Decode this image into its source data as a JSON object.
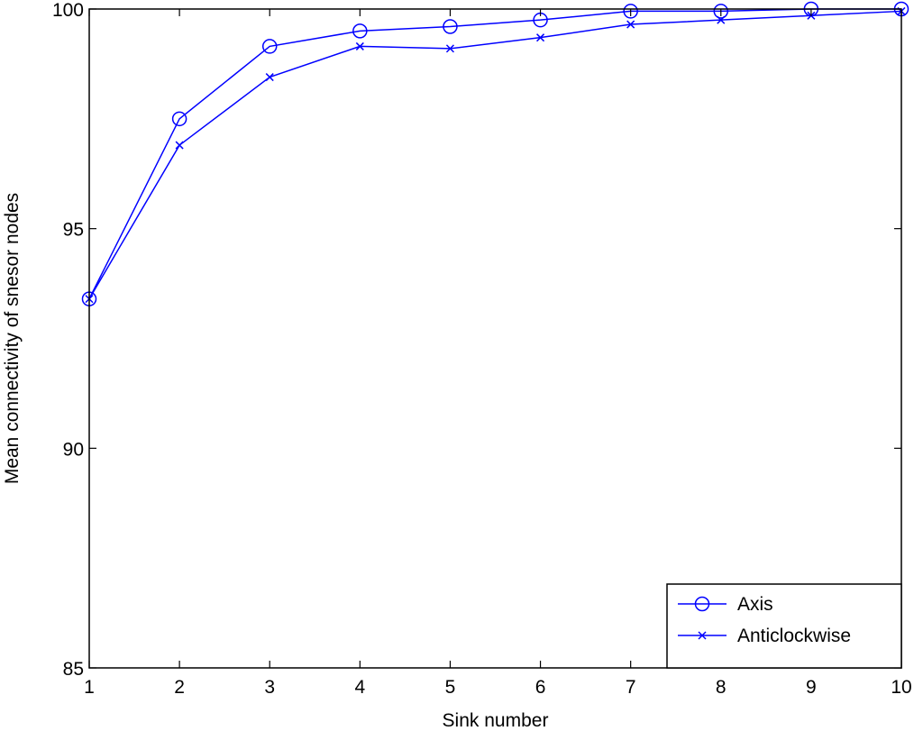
{
  "chart_data": {
    "type": "line",
    "title": "",
    "xlabel": "Sink number",
    "ylabel": "Mean connectivity of snesor nodes",
    "xlim": [
      1,
      10
    ],
    "ylim": [
      85,
      100
    ],
    "xticks": [
      1,
      2,
      3,
      4,
      5,
      6,
      7,
      8,
      9,
      10
    ],
    "yticks": [
      85,
      90,
      95,
      100
    ],
    "grid": false,
    "legend_position": "bottom-right",
    "x": [
      1,
      2,
      3,
      4,
      5,
      6,
      7,
      8,
      9,
      10
    ],
    "series": [
      {
        "name": "Axis",
        "marker": "circle",
        "color": "#0000ff",
        "values": [
          93.4,
          97.5,
          99.15,
          99.5,
          99.6,
          99.75,
          99.95,
          99.95,
          100.0,
          100.0
        ]
      },
      {
        "name": "Anticlockwise",
        "marker": "x",
        "color": "#0000ff",
        "values": [
          93.4,
          96.9,
          98.45,
          99.15,
          99.1,
          99.35,
          99.65,
          99.75,
          99.85,
          99.95
        ]
      }
    ]
  }
}
